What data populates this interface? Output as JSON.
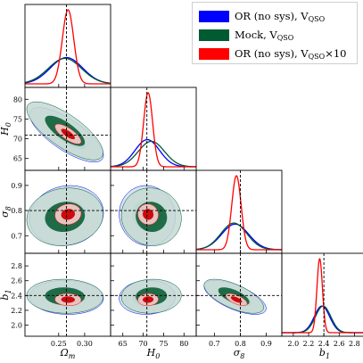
{
  "chart_data": {
    "type": "corner",
    "parameters": [
      {
        "key": "om",
        "label": "Ω",
        "sub": "m",
        "range": [
          0.185,
          0.35
        ],
        "ticks": [
          0.25,
          0.3
        ],
        "tick_labels": [
          "0.25",
          "0.30"
        ],
        "truth": 0.265
      },
      {
        "key": "h0",
        "label": "H",
        "sub": "0",
        "range": [
          62,
          83
        ],
        "ticks": [
          65,
          70,
          75,
          80
        ],
        "tick_labels": [
          "65",
          "70",
          "75",
          "80"
        ],
        "truth": 70.9
      },
      {
        "key": "s8",
        "label": "σ",
        "sub": "8",
        "range": [
          0.63,
          0.96
        ],
        "ticks": [
          0.7,
          0.8,
          0.9
        ],
        "tick_labels": [
          "0.7",
          "0.8",
          "0.9"
        ],
        "truth": 0.8
      },
      {
        "key": "b1",
        "label": "b",
        "sub": "1",
        "range": [
          1.85,
          2.97
        ],
        "ticks": [
          2.0,
          2.2,
          2.4,
          2.6,
          2.8
        ],
        "tick_labels": [
          "2.0",
          "2.2",
          "2.4",
          "2.6",
          "2.8"
        ],
        "truth": 2.4
      }
    ],
    "series": [
      {
        "name": "OR (no sys), V_QSO",
        "color": "#0000ff",
        "contour_fill": [
          "#b4cdd8",
          "#7aa3b8"
        ],
        "mean": [
          0.265,
          71.0,
          0.78,
          2.375
        ],
        "sigma": [
          0.031,
          3.0,
          0.052,
          0.1
        ]
      },
      {
        "name": "Mock, V_QSO",
        "color": "#005a32",
        "contour_fill": [
          "#c6d9d4",
          "#01592e"
        ],
        "mean": [
          0.262,
          72.0,
          0.775,
          2.39
        ],
        "sigma": [
          0.032,
          3.2,
          0.05,
          0.1
        ]
      },
      {
        "name": "OR (no sys), V_QSO×10",
        "color": "#ff0000",
        "contour_fill": [
          "#f0c8c8",
          "#cc0000"
        ],
        "mean": [
          0.268,
          71.2,
          0.785,
          2.345
        ],
        "sigma": [
          0.011,
          1.1,
          0.018,
          0.036
        ]
      }
    ],
    "correlations": {
      "om_h0": -0.75,
      "om_s8": 0.1,
      "om_b1": -0.05,
      "h0_s8": -0.05,
      "h0_b1": 0.05,
      "s8_b1": -0.65
    },
    "truth_line": "dashed"
  },
  "legend": {
    "entries": [
      {
        "text": "OR (no sys), V",
        "sub": "QSO",
        "suffix": "",
        "color": "#0000ff"
      },
      {
        "text": "Mock, V",
        "sub": "QSO",
        "suffix": "",
        "color": "#005a32"
      },
      {
        "text": "OR (no sys), V",
        "sub": "QSO",
        "suffix": "×10",
        "color": "#ff0000"
      }
    ]
  }
}
